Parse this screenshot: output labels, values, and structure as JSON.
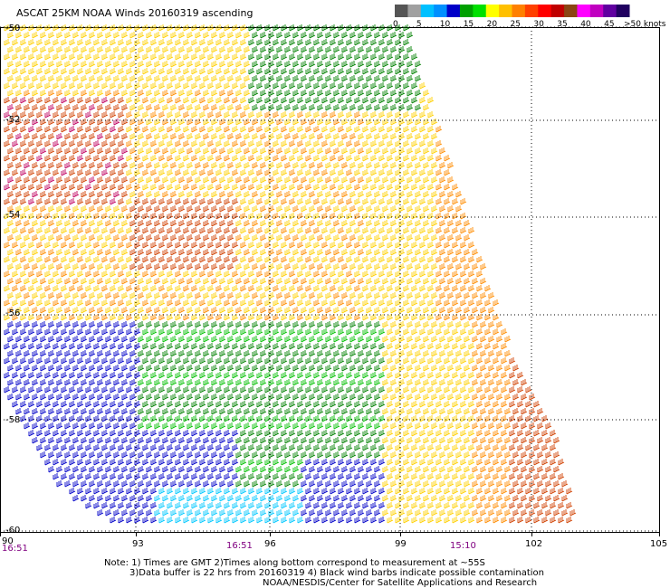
{
  "title": "ASCAT 25KM NOAA Winds 20160319 ascending",
  "colorbar": {
    "labels": [
      "0",
      "5",
      "10",
      "15",
      "20",
      "25",
      "30",
      "35",
      "40",
      "45",
      ">50 knots"
    ],
    "colors": [
      "#555555",
      "#a0a0a0",
      "#00c0ff",
      "#0090ff",
      "#0000c8",
      "#00a000",
      "#00e000",
      "#ffff00",
      "#ffc000",
      "#ff8000",
      "#ff4000",
      "#ff0000",
      "#c00000",
      "#8b4513",
      "#ff00ff",
      "#c000c0",
      "#6000a0",
      "#200060"
    ]
  },
  "lat_labels": [
    "-50",
    "-52",
    "-54",
    "-56",
    "-58",
    "-60"
  ],
  "lon_labels": [
    "90",
    "93",
    "96",
    "99",
    "102",
    "105"
  ],
  "times": [
    "16:51",
    "16:51",
    "15:10"
  ],
  "notes": [
    "Note: 1) Times are GMT 2)Times along bottom correspond to measurement at ~55S",
    "3)Data buffer is 22 hrs from 20160319 4) Black wind barbs indicate possible contamination",
    "NOAA/NESDIS/Center for Satellite Applications and Research"
  ],
  "legend_colors": {
    "calm": "#00c8ff",
    "blue": "#0000c8",
    "green": "#008000",
    "lightgreen": "#00c000",
    "yellow": "#ffd000",
    "orange": "#ff8c00",
    "red": "#d04000",
    "magenta": "#c00060"
  }
}
